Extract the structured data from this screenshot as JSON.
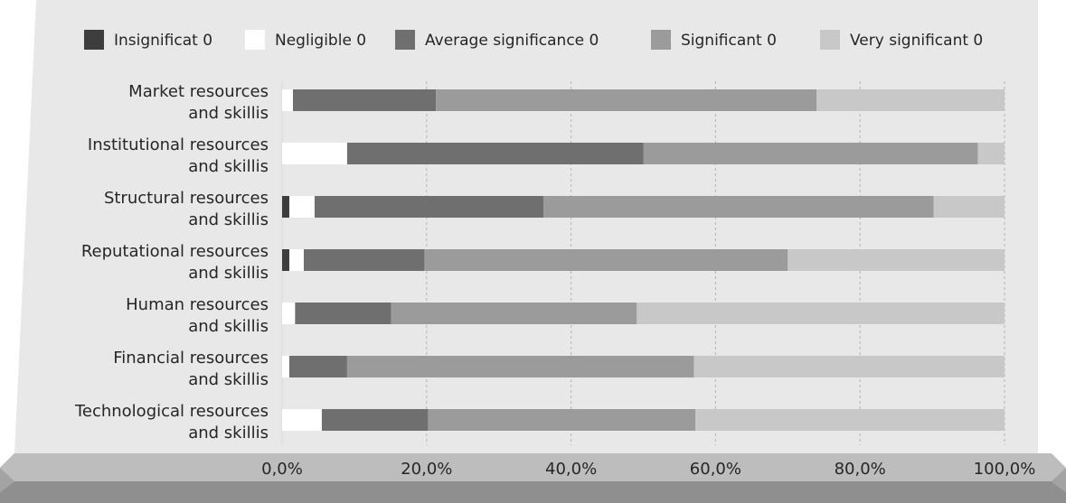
{
  "chart_data": {
    "type": "bar",
    "orientation": "horizontal",
    "stacked": true,
    "percent": true,
    "title": "",
    "xlabel": "",
    "ylabel": "",
    "xlim": [
      0,
      100
    ],
    "x_ticks": [
      "0,0%",
      "20,0%",
      "40,0%",
      "60,0%",
      "80,0%",
      "100,0%"
    ],
    "grid": "vertical dashed",
    "legend_position": "top",
    "categories": [
      [
        "Market resources",
        "and skillis"
      ],
      [
        "Institutional resources",
        "and skillis"
      ],
      [
        "Structural resources",
        "and skillis"
      ],
      [
        "Reputational resources",
        "and skillis"
      ],
      [
        "Human  resources",
        "and skillis"
      ],
      [
        "Financial resources",
        "and skillis"
      ],
      [
        "Technological resources",
        "and skillis"
      ]
    ],
    "series": [
      {
        "name": "Insignificat 0",
        "color": "#3d3d3d",
        "values": [
          0,
          0,
          1.0,
          1.0,
          0,
          0,
          0
        ]
      },
      {
        "name": "Negligible 0",
        "color": "#ffffff",
        "values": [
          1.5,
          9.0,
          3.5,
          2.0,
          1.8,
          1.0,
          5.5
        ]
      },
      {
        "name": "Average significance 0",
        "color": "#6f6f6f",
        "values": [
          19.8,
          41.0,
          31.7,
          16.7,
          13.3,
          8.0,
          14.7
        ]
      },
      {
        "name": "Significant 0",
        "color": "#9b9b9b",
        "values": [
          52.7,
          46.3,
          54.0,
          50.3,
          34.0,
          48.0,
          37.0
        ]
      },
      {
        "name": "Very significant 0",
        "color": "#c8c8c8",
        "values": [
          26.0,
          3.7,
          9.8,
          30.0,
          50.9,
          43.0,
          42.8
        ]
      }
    ]
  }
}
